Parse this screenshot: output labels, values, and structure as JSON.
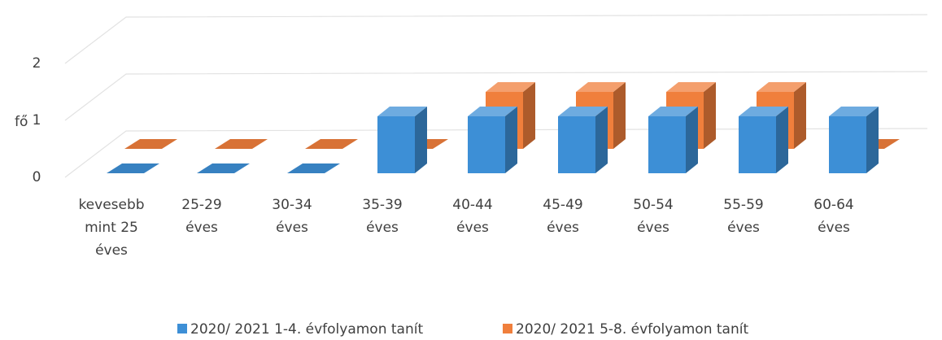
{
  "chart_data": {
    "type": "bar3d",
    "y_label": "fő",
    "categories": [
      "kevesebb mint 25 éves",
      "25-29 éves",
      "30-34 éves",
      "35-39 éves",
      "40-44 éves",
      "45-49 éves",
      "50-54 éves",
      "55-59 éves",
      "60-64 éves"
    ],
    "series": [
      {
        "name": "2020/ 2021 1-4. évfolyamon tanít",
        "color": "#3d8fd6",
        "values": [
          0,
          0,
          0,
          1,
          1,
          1,
          1,
          1,
          1
        ]
      },
      {
        "name": "2020/ 2021 5-8. évfolyamon tanít",
        "color": "#f07f3c",
        "values": [
          0,
          0,
          0,
          0,
          1,
          1,
          1,
          1,
          0
        ]
      }
    ],
    "ylim": [
      0,
      2
    ],
    "yticks": [
      0,
      1,
      2
    ],
    "grid": true,
    "legend": "bottom"
  }
}
